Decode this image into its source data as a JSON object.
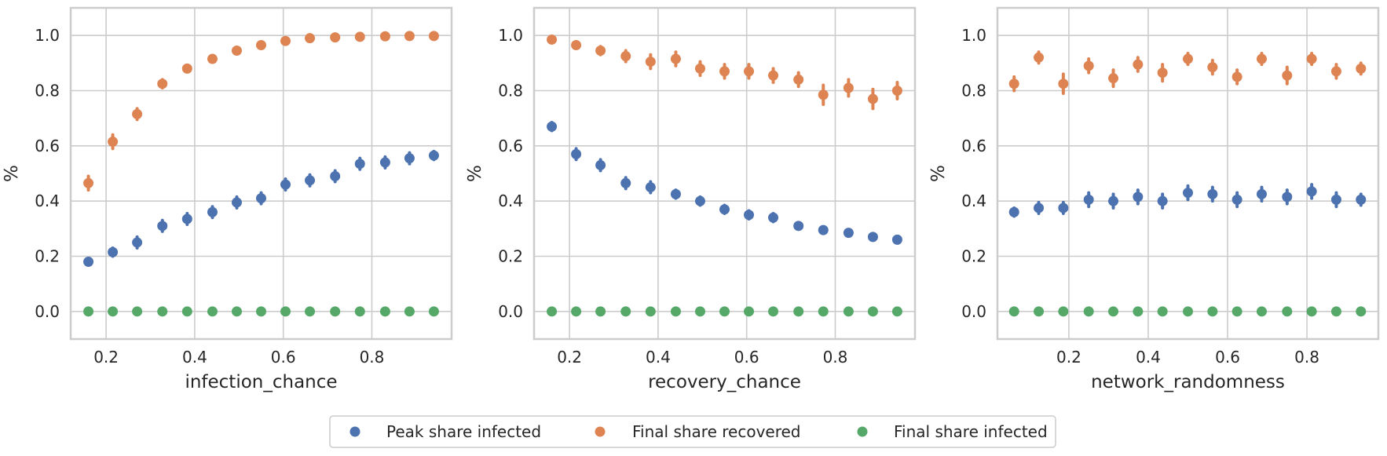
{
  "chart_data": [
    {
      "type": "scatter",
      "xlabel": "infection_chance",
      "ylabel": "%",
      "xlim": [
        0.12,
        0.98
      ],
      "ylim": [
        -0.1,
        1.1
      ],
      "xticks": [
        "0.2",
        "0.4",
        "0.6",
        "0.8"
      ],
      "xtick_values": [
        0.2,
        0.4,
        0.6,
        0.8
      ],
      "yticks": [
        "0.0",
        "0.2",
        "0.4",
        "0.6",
        "0.8",
        "1.0"
      ],
      "ytick_values": [
        0.0,
        0.2,
        0.4,
        0.6,
        0.8,
        1.0
      ],
      "grid": true,
      "x": [
        0.16,
        0.215,
        0.27,
        0.327,
        0.383,
        0.44,
        0.495,
        0.55,
        0.605,
        0.66,
        0.717,
        0.773,
        0.83,
        0.885,
        0.94
      ],
      "series": [
        {
          "name": "Peak share infected",
          "color": "#4c72b0",
          "values": [
            0.18,
            0.215,
            0.25,
            0.31,
            0.335,
            0.36,
            0.395,
            0.41,
            0.46,
            0.475,
            0.49,
            0.535,
            0.54,
            0.555,
            0.565
          ],
          "err": [
            0.01,
            0.015,
            0.02,
            0.02,
            0.02,
            0.02,
            0.02,
            0.02,
            0.02,
            0.02,
            0.02,
            0.02,
            0.02,
            0.02,
            0.015
          ]
        },
        {
          "name": "Final share recovered",
          "color": "#dd8452",
          "values": [
            0.465,
            0.615,
            0.715,
            0.825,
            0.88,
            0.915,
            0.945,
            0.965,
            0.98,
            0.99,
            0.993,
            0.995,
            0.997,
            0.998,
            0.998
          ],
          "err": [
            0.025,
            0.025,
            0.02,
            0.015,
            0.01,
            0.008,
            0.006,
            0.005,
            0.004,
            0.003,
            0.003,
            0.002,
            0.002,
            0.002,
            0.002
          ]
        },
        {
          "name": "Final share infected",
          "color": "#55a868",
          "values": [
            0,
            0,
            0,
            0,
            0,
            0,
            0,
            0,
            0,
            0,
            0,
            0,
            0,
            0,
            0
          ],
          "err": [
            0,
            0,
            0,
            0,
            0,
            0,
            0,
            0,
            0,
            0,
            0,
            0,
            0,
            0,
            0
          ]
        }
      ]
    },
    {
      "type": "scatter",
      "xlabel": "recovery_chance",
      "ylabel": "%",
      "xlim": [
        0.12,
        0.98
      ],
      "ylim": [
        -0.1,
        1.1
      ],
      "xticks": [
        "0.2",
        "0.4",
        "0.6",
        "0.8"
      ],
      "xtick_values": [
        0.2,
        0.4,
        0.6,
        0.8
      ],
      "yticks": [
        "0.0",
        "0.2",
        "0.4",
        "0.6",
        "0.8",
        "1.0"
      ],
      "ytick_values": [
        0.0,
        0.2,
        0.4,
        0.6,
        0.8,
        1.0
      ],
      "grid": true,
      "x": [
        0.16,
        0.215,
        0.27,
        0.327,
        0.383,
        0.44,
        0.495,
        0.55,
        0.605,
        0.66,
        0.717,
        0.773,
        0.83,
        0.885,
        0.94
      ],
      "series": [
        {
          "name": "Peak share infected",
          "color": "#4c72b0",
          "values": [
            0.67,
            0.57,
            0.53,
            0.465,
            0.45,
            0.425,
            0.4,
            0.37,
            0.35,
            0.34,
            0.31,
            0.295,
            0.285,
            0.27,
            0.26
          ],
          "err": [
            0.015,
            0.02,
            0.02,
            0.02,
            0.02,
            0.015,
            0.015,
            0.015,
            0.015,
            0.015,
            0.01,
            0.01,
            0.01,
            0.01,
            0.008
          ]
        },
        {
          "name": "Final share recovered",
          "color": "#dd8452",
          "values": [
            0.985,
            0.965,
            0.945,
            0.925,
            0.905,
            0.915,
            0.88,
            0.87,
            0.87,
            0.855,
            0.84,
            0.785,
            0.81,
            0.77,
            0.8
          ],
          "err": [
            0.005,
            0.01,
            0.015,
            0.02,
            0.025,
            0.025,
            0.025,
            0.025,
            0.025,
            0.025,
            0.025,
            0.035,
            0.03,
            0.035,
            0.03
          ]
        },
        {
          "name": "Final share infected",
          "color": "#55a868",
          "values": [
            0,
            0,
            0,
            0,
            0,
            0,
            0,
            0,
            0,
            0,
            0,
            0,
            0,
            0,
            0
          ],
          "err": [
            0,
            0,
            0,
            0,
            0,
            0,
            0,
            0,
            0,
            0,
            0,
            0,
            0,
            0,
            0
          ]
        }
      ]
    },
    {
      "type": "scatter",
      "xlabel": "network_randomness",
      "ylabel": "%",
      "xlim": [
        0.02,
        0.98
      ],
      "ylim": [
        -0.1,
        1.1
      ],
      "xticks": [
        "0.2",
        "0.4",
        "0.6",
        "0.8"
      ],
      "xtick_values": [
        0.2,
        0.4,
        0.6,
        0.8
      ],
      "yticks": [
        "0.0",
        "0.2",
        "0.4",
        "0.6",
        "0.8",
        "1.0"
      ],
      "ytick_values": [
        0.0,
        0.2,
        0.4,
        0.6,
        0.8,
        1.0
      ],
      "grid": true,
      "x": [
        0.062,
        0.124,
        0.186,
        0.25,
        0.312,
        0.374,
        0.436,
        0.5,
        0.562,
        0.624,
        0.686,
        0.75,
        0.812,
        0.874,
        0.936
      ],
      "series": [
        {
          "name": "Peak share infected",
          "color": "#4c72b0",
          "values": [
            0.36,
            0.375,
            0.375,
            0.405,
            0.4,
            0.415,
            0.4,
            0.43,
            0.425,
            0.405,
            0.425,
            0.415,
            0.435,
            0.405,
            0.405
          ],
          "err": [
            0.015,
            0.02,
            0.02,
            0.025,
            0.025,
            0.025,
            0.025,
            0.025,
            0.025,
            0.025,
            0.025,
            0.025,
            0.025,
            0.025,
            0.02
          ]
        },
        {
          "name": "Final share recovered",
          "color": "#dd8452",
          "values": [
            0.825,
            0.92,
            0.825,
            0.89,
            0.845,
            0.895,
            0.865,
            0.915,
            0.885,
            0.85,
            0.915,
            0.855,
            0.915,
            0.87,
            0.88
          ],
          "err": [
            0.025,
            0.02,
            0.035,
            0.025,
            0.03,
            0.025,
            0.03,
            0.02,
            0.025,
            0.025,
            0.02,
            0.03,
            0.02,
            0.025,
            0.02
          ]
        },
        {
          "name": "Final share infected",
          "color": "#55a868",
          "values": [
            0,
            0,
            0,
            0,
            0,
            0,
            0,
            0,
            0,
            0,
            0,
            0,
            0,
            0,
            0
          ],
          "err": [
            0,
            0,
            0,
            0,
            0,
            0,
            0,
            0,
            0,
            0,
            0,
            0,
            0,
            0,
            0
          ]
        }
      ]
    }
  ],
  "legend": {
    "placement": "bottom-center",
    "items": [
      {
        "label": "Peak share infected",
        "color": "#4c72b0"
      },
      {
        "label": "Final share recovered",
        "color": "#dd8452"
      },
      {
        "label": "Final share infected",
        "color": "#55a868"
      }
    ]
  }
}
